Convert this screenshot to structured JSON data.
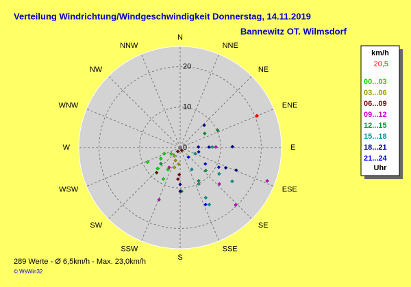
{
  "chart_data": {
    "type": "polar_scatter",
    "title": "Verteilung Windrichtung/Windgeschwindigkeit  Donnerstag, 14.11.2019",
    "subtitle": "Bannewitz OT. Wilmsdorf",
    "directions": [
      "N",
      "NNE",
      "NE",
      "ENE",
      "E",
      "ESE",
      "SE",
      "SSE",
      "S",
      "SSW",
      "SW",
      "WSW",
      "W",
      "WNW",
      "NW",
      "NNW"
    ],
    "rlim": [
      0,
      25
    ],
    "rticks": [
      0,
      10,
      20
    ],
    "grid": true,
    "legend_title": "km/h",
    "legend_footer": "Uhr",
    "current": {
      "label": "20,5",
      "direction": 67.5,
      "speed": 20.5,
      "color": "#ff0000"
    },
    "series": [
      {
        "name": "00...03",
        "color": "#00dd00",
        "direction": [
          246,
          227,
          249,
          235,
          208,
          209,
          240
        ],
        "speed": [
          8.8,
          7.6,
          4.2,
          2.7,
          8.8,
          6.2,
          5.5
        ]
      },
      {
        "name": "03...06",
        "color": "#999900",
        "direction": [
          200,
          185,
          196,
          215
        ],
        "speed": [
          3.4,
          4.1,
          5.1,
          2.5
        ]
      },
      {
        "name": "06...09",
        "color": "#800000",
        "direction": [
          210,
          150,
          182,
          184,
          223
        ],
        "speed": [
          1.1,
          0.8,
          6.7,
          7.8,
          8.5
        ]
      },
      {
        "name": "09...12",
        "color": "#cc00cc",
        "direction": [
          202,
          209,
          136,
          111,
          89,
          133
        ],
        "speed": [
          13.9,
          5.6,
          19.7,
          23.0,
          8.8,
          13.2
        ]
      },
      {
        "name": "12...15",
        "color": "#009933",
        "direction": [
          178,
          151,
          132,
          65,
          60,
          230
        ],
        "speed": [
          10.8,
          9.4,
          8.5,
          10.2,
          7.0,
          6.2
        ]
      },
      {
        "name": "15...18",
        "color": "#009999",
        "direction": [
          152,
          153,
          153,
          153,
          124,
          123,
          89,
          112
        ],
        "speed": [
          6.1,
          10.1,
          13.9,
          15.8,
          11.6,
          15.3,
          7.9,
          4.0
        ]
      },
      {
        "name": "18...21",
        "color": "#000099",
        "direction": [
          180,
          180,
          112,
          114,
          88,
          89,
          47,
          89
        ],
        "speed": [
          9.1,
          10.8,
          14.9,
          12.3,
          4.5,
          7.1,
          8.1,
          12.9
        ]
      },
      {
        "name": "21...24",
        "color": "#0000ff",
        "direction": [
          139,
          123,
          117,
          103,
          156
        ],
        "speed": [
          3.1,
          7.4,
          10.7,
          4.7,
          15.4
        ]
      }
    ],
    "summary": "289 Werte  -  Ø 6,5km/h  -  Max. 23,0km/h",
    "credit": "© WsWin32"
  }
}
